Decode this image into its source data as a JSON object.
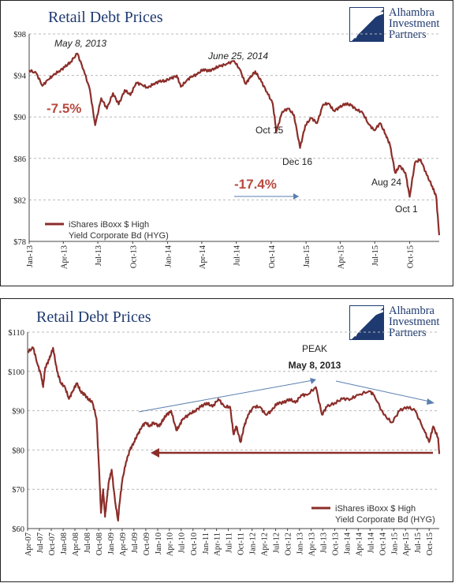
{
  "brand": {
    "line1": "Alhambra",
    "line2": "Investment",
    "line3": "Partners",
    "color": "#1f3a70"
  },
  "chart_data": [
    {
      "type": "line",
      "title": "Retail Debt Prices",
      "ylim": [
        78,
        98
      ],
      "yticks": [
        "$78",
        "$82",
        "$86",
        "$90",
        "$94",
        "$98"
      ],
      "ytick_values": [
        78,
        82,
        86,
        90,
        94,
        98
      ],
      "xticks": [
        "Jan-13",
        "Apr-13",
        "Jul-13",
        "Oct-13",
        "Jan-14",
        "Apr-14",
        "Jul-14",
        "Oct-14",
        "Jan-15",
        "Apr-15",
        "Jul-15",
        "Oct-15"
      ],
      "xlim": [
        "2013-01-01",
        "2015-12-18"
      ],
      "grid": true,
      "series": [
        {
          "name": "iShares iBoxx $ High Yield Corporate Bd (HYG)",
          "color": "#8b2e2a",
          "x": [
            "2013-01-01",
            "2013-01-20",
            "2013-02-05",
            "2013-02-20",
            "2013-03-05",
            "2013-03-20",
            "2013-04-05",
            "2013-04-20",
            "2013-05-08",
            "2013-05-25",
            "2013-06-10",
            "2013-06-24",
            "2013-07-10",
            "2013-07-25",
            "2013-08-10",
            "2013-08-25",
            "2013-09-10",
            "2013-09-25",
            "2013-10-10",
            "2013-10-25",
            "2013-11-10",
            "2013-11-25",
            "2013-12-10",
            "2013-12-25",
            "2014-01-10",
            "2014-01-25",
            "2014-02-05",
            "2014-02-20",
            "2014-03-05",
            "2014-03-20",
            "2014-04-05",
            "2014-04-20",
            "2014-05-05",
            "2014-05-20",
            "2014-06-05",
            "2014-06-25",
            "2014-07-10",
            "2014-07-25",
            "2014-08-05",
            "2014-08-20",
            "2014-09-05",
            "2014-09-20",
            "2014-10-05",
            "2014-10-15",
            "2014-10-30",
            "2014-11-15",
            "2014-11-30",
            "2014-12-16",
            "2014-12-30",
            "2015-01-15",
            "2015-01-30",
            "2015-02-15",
            "2015-03-01",
            "2015-03-15",
            "2015-03-30",
            "2015-04-15",
            "2015-04-30",
            "2015-05-15",
            "2015-05-30",
            "2015-06-15",
            "2015-06-30",
            "2015-07-15",
            "2015-07-30",
            "2015-08-10",
            "2015-08-24",
            "2015-09-05",
            "2015-09-20",
            "2015-10-01",
            "2015-10-15",
            "2015-10-30",
            "2015-11-15",
            "2015-11-30",
            "2015-12-10",
            "2015-12-18"
          ],
          "y": [
            94.5,
            94.2,
            93.0,
            93.6,
            94.0,
            94.4,
            94.8,
            95.3,
            96.1,
            94.5,
            92.6,
            89.2,
            91.8,
            90.8,
            92.3,
            91.2,
            92.6,
            92.1,
            93.3,
            93.1,
            92.8,
            93.2,
            93.4,
            93.5,
            93.7,
            94.0,
            92.9,
            93.5,
            93.9,
            94.1,
            94.6,
            94.4,
            94.7,
            94.9,
            95.1,
            95.4,
            94.6,
            93.2,
            93.7,
            94.4,
            93.4,
            92.4,
            91.3,
            88.6,
            90.5,
            90.8,
            90.2,
            87.0,
            89.2,
            89.9,
            89.4,
            91.2,
            91.3,
            90.6,
            90.9,
            91.3,
            91.1,
            90.7,
            90.4,
            89.3,
            88.7,
            89.4,
            88.3,
            87.3,
            84.6,
            85.3,
            84.6,
            82.3,
            85.6,
            85.9,
            84.4,
            83.3,
            82.3,
            78.6
          ]
        }
      ],
      "annotations": [
        {
          "text": "May 8, 2013",
          "italic": true
        },
        {
          "text": "June 25, 2014",
          "italic": true
        },
        {
          "text": "-7.5%"
        },
        {
          "text": "Oct 15"
        },
        {
          "text": "Dec 16"
        },
        {
          "text": "-17.4%"
        },
        {
          "text": "Aug 24"
        },
        {
          "text": "Oct 1"
        }
      ]
    },
    {
      "type": "line",
      "title": "Retail Debt Prices",
      "ylim": [
        60,
        110
      ],
      "yticks": [
        "$60",
        "$70",
        "$80",
        "$90",
        "$100",
        "$110"
      ],
      "ytick_values": [
        60,
        70,
        80,
        90,
        100,
        110
      ],
      "xticks": [
        "Apr-07",
        "Jul-07",
        "Oct-07",
        "Jan-08",
        "Apr-08",
        "Jul-08",
        "Oct-08",
        "Jan-09",
        "Apr-09",
        "Jul-09",
        "Oct-09",
        "Jan-10",
        "Apr-10",
        "Jul-10",
        "Oct-10",
        "Jan-11",
        "Apr-11",
        "Jul-11",
        "Oct-11",
        "Jan-12",
        "Apr-12",
        "Jul-12",
        "Oct-12",
        "Jan-13",
        "Apr-13",
        "Jul-13",
        "Oct-13",
        "Jan-14",
        "Apr-14",
        "Jul-14",
        "Oct-14",
        "Jan-15",
        "Apr-15",
        "Jul-15",
        "Oct-15"
      ],
      "xlim": [
        "2007-04-01",
        "2015-12-18"
      ],
      "grid": true,
      "series": [
        {
          "name": "iShares iBoxx $ High Yield Corporate Bd (HYG)",
          "color": "#8b2e2a",
          "x": [
            "2007-04-01",
            "2007-05-15",
            "2007-06-15",
            "2007-07-15",
            "2007-07-30",
            "2007-08-15",
            "2007-09-15",
            "2007-10-15",
            "2007-11-15",
            "2007-12-15",
            "2008-01-15",
            "2008-02-15",
            "2008-03-15",
            "2008-04-15",
            "2008-05-15",
            "2008-06-15",
            "2008-07-15",
            "2008-08-15",
            "2008-09-15",
            "2008-10-05",
            "2008-10-20",
            "2008-11-05",
            "2008-11-20",
            "2008-12-05",
            "2008-12-20",
            "2009-01-10",
            "2009-02-05",
            "2009-03-01",
            "2009-03-10",
            "2009-04-01",
            "2009-05-01",
            "2009-06-01",
            "2009-07-01",
            "2009-08-01",
            "2009-09-01",
            "2009-10-01",
            "2009-11-01",
            "2009-12-01",
            "2010-01-15",
            "2010-02-15",
            "2010-03-15",
            "2010-04-15",
            "2010-05-25",
            "2010-06-15",
            "2010-07-15",
            "2010-09-01",
            "2010-10-15",
            "2010-12-01",
            "2011-01-15",
            "2011-03-01",
            "2011-04-15",
            "2011-06-01",
            "2011-07-15",
            "2011-08-10",
            "2011-09-01",
            "2011-10-04",
            "2011-11-01",
            "2011-12-01",
            "2012-01-15",
            "2012-03-01",
            "2012-04-15",
            "2012-06-01",
            "2012-07-15",
            "2012-09-01",
            "2012-10-15",
            "2012-12-01",
            "2013-01-15",
            "2013-03-01",
            "2013-05-08",
            "2013-06-24",
            "2013-08-01",
            "2013-10-01",
            "2013-12-01",
            "2014-02-01",
            "2014-04-01",
            "2014-06-25",
            "2014-08-01",
            "2014-10-15",
            "2014-12-16",
            "2015-02-15",
            "2015-04-15",
            "2015-06-15",
            "2015-08-24",
            "2015-10-01",
            "2015-11-01",
            "2015-12-10",
            "2015-12-18"
          ],
          "y": [
            105,
            106,
            102,
            99,
            96,
            101,
            103,
            106,
            100,
            97,
            96,
            93,
            95,
            97,
            95,
            94,
            93,
            92,
            88,
            75,
            64,
            70,
            63,
            68,
            72,
            75,
            67,
            62,
            66,
            72,
            77,
            80,
            82,
            84,
            86,
            87,
            86,
            87,
            86,
            88,
            89,
            90,
            85,
            86,
            88,
            89,
            90,
            91,
            92,
            91,
            93,
            91,
            91,
            84,
            86,
            82,
            86,
            89,
            91,
            91,
            89,
            90,
            92,
            92,
            93,
            92,
            94,
            94,
            96,
            89,
            91,
            92,
            93,
            93,
            94,
            95,
            94,
            89,
            87,
            90,
            91,
            90,
            85,
            82,
            86,
            83,
            79
          ]
        }
      ],
      "annotations": [
        {
          "text": "PEAK"
        },
        {
          "text": "May 8, 2013",
          "bold": true
        }
      ]
    }
  ]
}
